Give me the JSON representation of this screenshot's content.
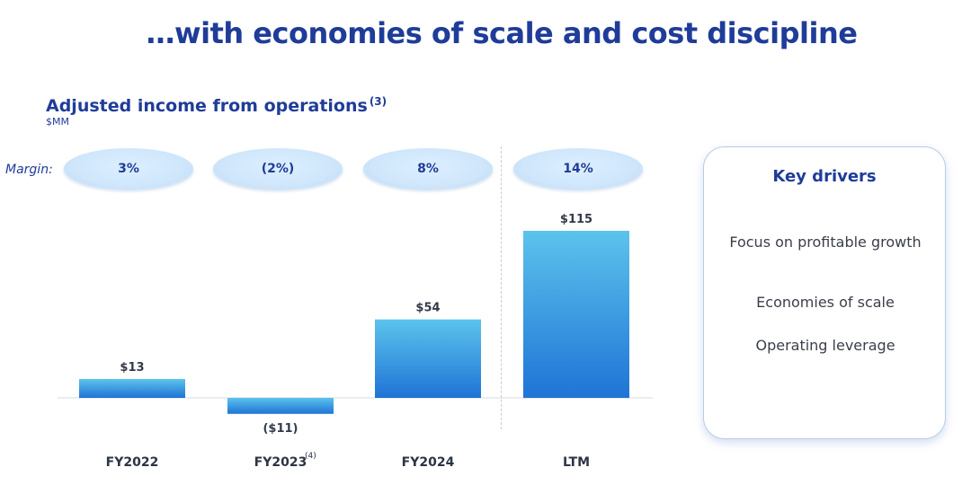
{
  "page": {
    "title": "…with economies of scale and cost discipline"
  },
  "chart_data": {
    "type": "bar",
    "title": "Adjusted income from operations",
    "title_footnote": "(3)",
    "unit": "$MM",
    "margin_label": "Margin:",
    "categories": [
      "FY2022",
      "FY2023",
      "FY2024",
      "LTM"
    ],
    "category_footnotes": [
      "",
      "(4)",
      "",
      ""
    ],
    "values": [
      13,
      -11,
      54,
      115
    ],
    "value_labels": [
      "$13",
      "($11)",
      "$54",
      "$115"
    ],
    "margins": [
      "3%",
      "(2%)",
      "8%",
      "14%"
    ],
    "xlabel": "",
    "ylabel": "",
    "ylim": [
      -11,
      115
    ],
    "colors": {
      "bar_top": "#5cc3ec",
      "bar_bottom": "#1f74d6"
    }
  },
  "drivers": {
    "title": "Key drivers",
    "items": [
      "Focus on profitable growth",
      "Economies of scale",
      "Operating leverage"
    ]
  }
}
